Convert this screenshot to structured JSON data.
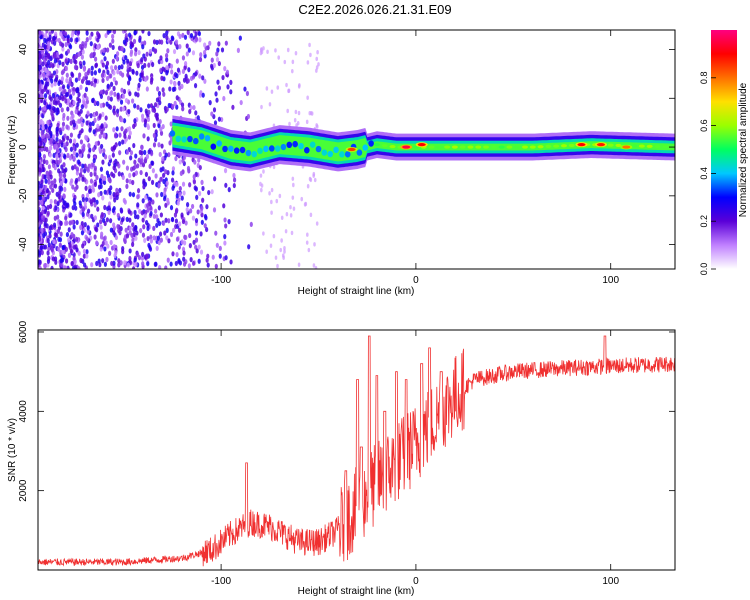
{
  "title": "C2E2.2026.026.21.31.E09",
  "charts": [
    {
      "type": "heatmap",
      "xlabel": "Height of straight line (km)",
      "ylabel": "Frequency (Hz)",
      "xlim": [
        -194,
        133
      ],
      "ylim": [
        -50,
        48
      ],
      "xticks": [
        {
          "v": -100,
          "label": "-100"
        },
        {
          "v": 0,
          "label": "0"
        },
        {
          "v": 100,
          "label": "100"
        }
      ],
      "yticks": [
        {
          "v": -40,
          "label": "-40"
        },
        {
          "v": -20,
          "label": "-20"
        },
        {
          "v": 0,
          "label": "0"
        },
        {
          "v": 20,
          "label": "20"
        },
        {
          "v": 40,
          "label": "40"
        }
      ],
      "ridge": [
        {
          "x": -125,
          "f": 5
        },
        {
          "x": -110,
          "f": 3
        },
        {
          "x": -95,
          "f": -1
        },
        {
          "x": -85,
          "f": -2
        },
        {
          "x": -70,
          "f": 1
        },
        {
          "x": -55,
          "f": 0
        },
        {
          "x": -40,
          "f": -2
        },
        {
          "x": -30,
          "f": -1
        },
        {
          "x": -20,
          "f": 1
        },
        {
          "x": -10,
          "f": 0
        },
        {
          "x": 0,
          "f": 0
        },
        {
          "x": 20,
          "f": 0
        },
        {
          "x": 60,
          "f": 0
        },
        {
          "x": 90,
          "f": 1
        },
        {
          "x": 133,
          "f": 0
        }
      ],
      "hotspots": [
        {
          "x": -33,
          "f": -1,
          "a": 0.85
        },
        {
          "x": -5,
          "f": 0,
          "a": 0.95
        },
        {
          "x": 3,
          "f": 1,
          "a": 0.9
        },
        {
          "x": 85,
          "f": 1,
          "a": 0.9
        },
        {
          "x": 95,
          "f": 1,
          "a": 0.88
        },
        {
          "x": 108,
          "f": 0,
          "a": 0.8
        }
      ],
      "colorbar": {
        "label": "Normalized spectral amplitude",
        "range": [
          0,
          1
        ],
        "ticks": [
          {
            "v": 0.0,
            "label": "0.0"
          },
          {
            "v": 0.2,
            "label": "0.2"
          },
          {
            "v": 0.4,
            "label": "0.4"
          },
          {
            "v": 0.6,
            "label": "0.6"
          },
          {
            "v": 0.8,
            "label": "0.8"
          }
        ],
        "colors": [
          "#ffffff",
          "#c080ff",
          "#5a00d8",
          "#0000ff",
          "#00c8ff",
          "#00ff60",
          "#9aff00",
          "#ffe000",
          "#ff7000",
          "#ff0000",
          "#ff0080"
        ]
      }
    },
    {
      "type": "line",
      "xlabel": "Height of straight line (km)",
      "ylabel": "SNR (10 * v/v)",
      "xlim": [
        -194,
        133
      ],
      "ylim": [
        0,
        6050
      ],
      "color": "#f03030",
      "xticks": [
        {
          "v": -100,
          "label": "-100"
        },
        {
          "v": 0,
          "label": "0"
        },
        {
          "v": 100,
          "label": "100"
        }
      ],
      "yticks": [
        {
          "v": 2000,
          "label": "2000"
        },
        {
          "v": 4000,
          "label": "4000"
        },
        {
          "v": 6000,
          "label": "6000"
        }
      ],
      "base": [
        {
          "x": -194,
          "y": 200
        },
        {
          "x": -150,
          "y": 200
        },
        {
          "x": -120,
          "y": 300
        },
        {
          "x": -105,
          "y": 500
        },
        {
          "x": -95,
          "y": 900
        },
        {
          "x": -85,
          "y": 1200
        },
        {
          "x": -75,
          "y": 1100
        },
        {
          "x": -60,
          "y": 700
        },
        {
          "x": -50,
          "y": 700
        },
        {
          "x": -40,
          "y": 1000
        },
        {
          "x": -30,
          "y": 1600
        },
        {
          "x": -20,
          "y": 2200
        },
        {
          "x": -10,
          "y": 2700
        },
        {
          "x": 0,
          "y": 3200
        },
        {
          "x": 10,
          "y": 3800
        },
        {
          "x": 20,
          "y": 4400
        },
        {
          "x": 30,
          "y": 4800
        },
        {
          "x": 50,
          "y": 5000
        },
        {
          "x": 80,
          "y": 5100
        },
        {
          "x": 133,
          "y": 5200
        }
      ],
      "spikes": [
        {
          "x": -87,
          "y": 2700
        },
        {
          "x": -36,
          "y": 2500
        },
        {
          "x": -30,
          "y": 4800
        },
        {
          "x": -28,
          "y": 3100
        },
        {
          "x": -24,
          "y": 5900
        },
        {
          "x": -20,
          "y": 4900
        },
        {
          "x": -16,
          "y": 4000
        },
        {
          "x": -10,
          "y": 5000
        },
        {
          "x": -5,
          "y": 4800
        },
        {
          "x": 3,
          "y": 5200
        },
        {
          "x": 7,
          "y": 5600
        },
        {
          "x": 13,
          "y": 5000
        },
        {
          "x": 97,
          "y": 5900
        }
      ]
    }
  ]
}
